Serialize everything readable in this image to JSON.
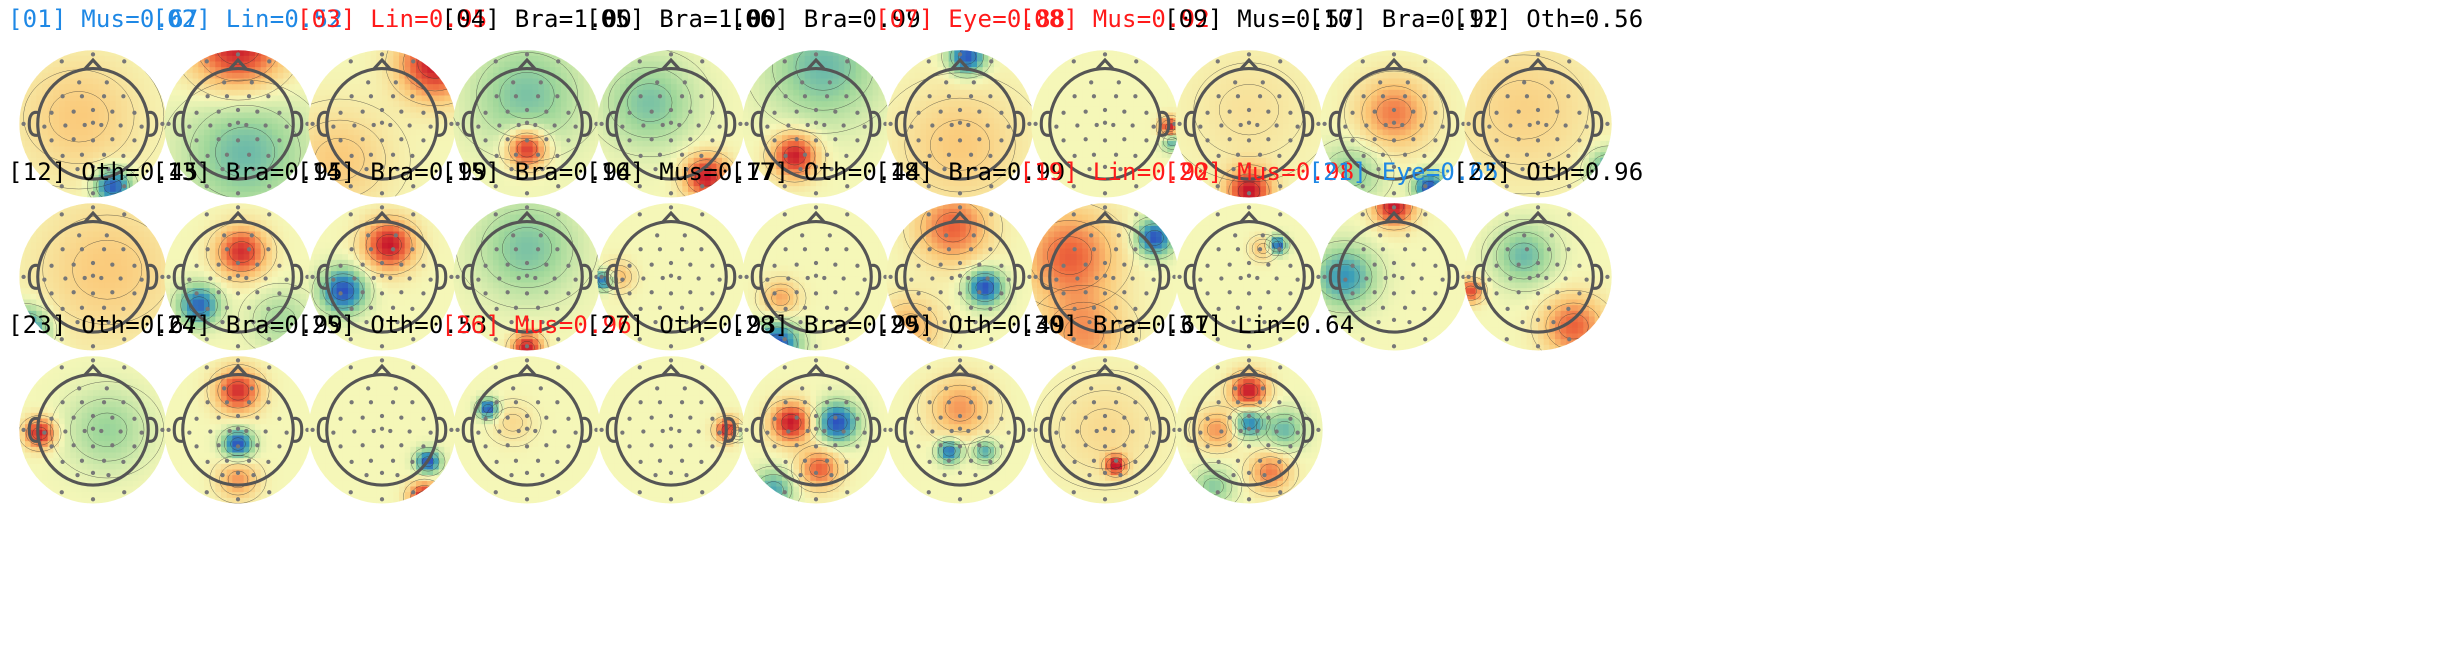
{
  "legend_colors": {
    "black": "#000000",
    "red": "#ff1a1a",
    "blue": "#1e88e5"
  },
  "colormap": [
    "#2c4fbf",
    "#3a9db8",
    "#9fd79a",
    "#f5f7b8",
    "#fbc675",
    "#ef6a3e",
    "#c7172b"
  ],
  "components": [
    {
      "label": "[01] Mus=0.67",
      "color": "blue",
      "blobs": [
        {
          "u": 0.28,
          "v": 0.88,
          "a": -1.0,
          "s": 0.18
        },
        {
          "u": -0.2,
          "v": -0.1,
          "a": 0.3,
          "s": 0.6
        }
      ]
    },
    {
      "label": "[02] Lin=0.52",
      "color": "blue",
      "blobs": [
        {
          "u": 0.0,
          "v": -1.1,
          "a": 1.0,
          "s": 0.45
        },
        {
          "u": 0.1,
          "v": 0.4,
          "a": -0.5,
          "s": 0.6
        }
      ]
    },
    {
      "label": "[03] Lin=0.95",
      "color": "red",
      "blobs": [
        {
          "u": 0.75,
          "v": -0.85,
          "a": 1.0,
          "s": 0.35
        },
        {
          "u": -0.6,
          "v": 0.5,
          "a": 0.3,
          "s": 0.5
        }
      ]
    },
    {
      "label": "[04] Bra=1.00",
      "color": "black",
      "blobs": [
        {
          "u": 0.0,
          "v": 0.35,
          "a": 1.0,
          "s": 0.2
        },
        {
          "u": 0.0,
          "v": -0.4,
          "a": -0.45,
          "s": 0.55
        }
      ]
    },
    {
      "label": "[05] Bra=1.00",
      "color": "black",
      "blobs": [
        {
          "u": 0.5,
          "v": 0.75,
          "a": 1.0,
          "s": 0.22
        },
        {
          "u": -0.3,
          "v": -0.3,
          "a": -0.45,
          "s": 0.45
        }
      ]
    },
    {
      "label": "[06] Bra=0.99",
      "color": "black",
      "blobs": [
        {
          "u": -0.3,
          "v": 0.45,
          "a": 1.0,
          "s": 0.22
        },
        {
          "u": 0.1,
          "v": -0.8,
          "a": -0.5,
          "s": 0.55
        }
      ]
    },
    {
      "label": "[07] Eye=0.88",
      "color": "red",
      "blobs": [
        {
          "u": 0.1,
          "v": -0.95,
          "a": -1.0,
          "s": 0.18
        },
        {
          "u": 0.0,
          "v": 0.3,
          "a": 0.3,
          "s": 0.6
        }
      ]
    },
    {
      "label": "[08] Mus=0.92",
      "color": "red",
      "blobs": [
        {
          "u": 0.92,
          "v": 0.05,
          "a": 1.0,
          "s": 0.1
        },
        {
          "u": 0.95,
          "v": 0.25,
          "a": -0.6,
          "s": 0.1
        }
      ]
    },
    {
      "label": "[09] Mus=0.57",
      "color": "black",
      "blobs": [
        {
          "u": 0.0,
          "v": 0.95,
          "a": 1.0,
          "s": 0.22
        },
        {
          "u": 0.0,
          "v": -0.2,
          "a": 0.15,
          "s": 0.6
        }
      ]
    },
    {
      "label": "[10] Bra=0.92",
      "color": "black",
      "blobs": [
        {
          "u": 0.0,
          "v": -0.15,
          "a": 0.6,
          "s": 0.35
        },
        {
          "u": 0.5,
          "v": 0.9,
          "a": -1.0,
          "s": 0.15
        },
        {
          "u": -0.6,
          "v": 0.7,
          "a": -0.4,
          "s": 0.3
        }
      ]
    },
    {
      "label": "[11] Oth=0.56",
      "color": "black",
      "blobs": [
        {
          "u": 1.0,
          "v": 0.65,
          "a": -0.7,
          "s": 0.2
        },
        {
          "u": -0.2,
          "v": -0.2,
          "a": 0.25,
          "s": 0.7
        }
      ]
    },
    {
      "label": "[12] Oth=0.45",
      "color": "black",
      "blobs": [
        {
          "u": -0.95,
          "v": 0.75,
          "a": -0.9,
          "s": 0.22
        },
        {
          "u": 0.2,
          "v": -0.1,
          "a": 0.3,
          "s": 0.7
        }
      ]
    },
    {
      "label": "[13] Bra=0.95",
      "color": "black",
      "blobs": [
        {
          "u": 0.05,
          "v": -0.35,
          "a": 0.9,
          "s": 0.25
        },
        {
          "u": -0.55,
          "v": 0.4,
          "a": -0.9,
          "s": 0.2
        },
        {
          "u": 0.6,
          "v": 0.6,
          "a": -0.3,
          "s": 0.3
        }
      ]
    },
    {
      "label": "[14] Bra=0.99",
      "color": "black",
      "blobs": [
        {
          "u": 0.1,
          "v": -0.45,
          "a": 1.0,
          "s": 0.25
        },
        {
          "u": -0.55,
          "v": 0.2,
          "a": -1.0,
          "s": 0.22
        }
      ]
    },
    {
      "label": "[15] Bra=0.94",
      "color": "black",
      "blobs": [
        {
          "u": 0.0,
          "v": 1.0,
          "a": 1.0,
          "s": 0.15
        },
        {
          "u": 0.0,
          "v": -0.4,
          "a": -0.45,
          "s": 0.5
        }
      ]
    },
    {
      "label": "[16] Mus=0.77",
      "color": "black",
      "blobs": [
        {
          "u": -0.95,
          "v": 0.05,
          "a": -1.0,
          "s": 0.1
        },
        {
          "u": -0.75,
          "v": 0.0,
          "a": 0.4,
          "s": 0.15
        }
      ]
    },
    {
      "label": "[17] Oth=0.44",
      "color": "black",
      "blobs": [
        {
          "u": -0.55,
          "v": 0.95,
          "a": -1.0,
          "s": 0.22
        },
        {
          "u": -0.5,
          "v": 0.3,
          "a": 0.45,
          "s": 0.18
        }
      ]
    },
    {
      "label": "[18] Bra=0.99",
      "color": "black",
      "blobs": [
        {
          "u": 0.35,
          "v": 0.15,
          "a": -1.0,
          "s": 0.18
        },
        {
          "u": -0.1,
          "v": -0.7,
          "a": 0.7,
          "s": 0.35
        },
        {
          "u": -0.7,
          "v": 0.7,
          "a": 0.4,
          "s": 0.3
        }
      ]
    },
    {
      "label": "[19] Lin=0.92",
      "color": "red",
      "blobs": [
        {
          "u": 0.7,
          "v": -0.55,
          "a": -1.0,
          "s": 0.18
        },
        {
          "u": -0.5,
          "v": -0.3,
          "a": 0.7,
          "s": 0.45
        },
        {
          "u": -0.3,
          "v": 0.8,
          "a": 0.5,
          "s": 0.4
        }
      ]
    },
    {
      "label": "[20] Mus=0.98",
      "color": "red",
      "blobs": [
        {
          "u": 0.4,
          "v": -0.45,
          "a": -1.0,
          "s": 0.09
        },
        {
          "u": 0.2,
          "v": -0.4,
          "a": 0.35,
          "s": 0.12
        }
      ]
    },
    {
      "label": "[21] Eye=0.65",
      "color": "blue",
      "blobs": [
        {
          "u": 0.0,
          "v": -1.0,
          "a": 1.0,
          "s": 0.2
        },
        {
          "u": -0.7,
          "v": 0.0,
          "a": -0.7,
          "s": 0.3
        }
      ]
    },
    {
      "label": "[22] Oth=0.96",
      "color": "black",
      "blobs": [
        {
          "u": -0.2,
          "v": -0.3,
          "a": -0.5,
          "s": 0.3
        },
        {
          "u": 0.5,
          "v": 0.7,
          "a": 0.7,
          "s": 0.3
        },
        {
          "u": -0.95,
          "v": 0.2,
          "a": 0.8,
          "s": 0.12
        }
      ]
    },
    {
      "label": "[23] Oth=0.67",
      "color": "black",
      "blobs": [
        {
          "u": -0.75,
          "v": 0.05,
          "a": 1.0,
          "s": 0.15
        },
        {
          "u": 0.2,
          "v": 0.0,
          "a": -0.35,
          "s": 0.4
        }
      ]
    },
    {
      "label": "[24] Bra=0.99",
      "color": "black",
      "blobs": [
        {
          "u": 0.0,
          "v": -0.55,
          "a": 0.9,
          "s": 0.22
        },
        {
          "u": 0.0,
          "v": 0.2,
          "a": -1.0,
          "s": 0.15
        },
        {
          "u": 0.0,
          "v": 0.7,
          "a": 0.5,
          "s": 0.2
        }
      ]
    },
    {
      "label": "[25] Oth=0.53",
      "color": "black",
      "blobs": [
        {
          "u": 0.65,
          "v": 0.45,
          "a": -1.0,
          "s": 0.12
        },
        {
          "u": 0.6,
          "v": 0.95,
          "a": 1.0,
          "s": 0.15
        }
      ]
    },
    {
      "label": "[26] Mus=0.96",
      "color": "red",
      "blobs": [
        {
          "u": -0.55,
          "v": -0.3,
          "a": -1.0,
          "s": 0.1
        },
        {
          "u": -0.2,
          "v": -0.1,
          "a": 0.2,
          "s": 0.2
        }
      ]
    },
    {
      "label": "[27] Oth=0.93",
      "color": "black",
      "blobs": [
        {
          "u": 0.8,
          "v": 0.0,
          "a": 1.0,
          "s": 0.12
        },
        {
          "u": 0.95,
          "v": 0.05,
          "a": -0.5,
          "s": 0.08
        }
      ]
    },
    {
      "label": "[28] Bra=0.95",
      "color": "black",
      "blobs": [
        {
          "u": -0.35,
          "v": -0.1,
          "a": 1.0,
          "s": 0.2
        },
        {
          "u": 0.3,
          "v": -0.1,
          "a": -1.0,
          "s": 0.2
        },
        {
          "u": 0.05,
          "v": 0.55,
          "a": 0.7,
          "s": 0.2
        },
        {
          "u": -0.6,
          "v": 0.85,
          "a": -0.6,
          "s": 0.2
        }
      ]
    },
    {
      "label": "[29] Oth=0.49",
      "color": "black",
      "blobs": [
        {
          "u": -0.15,
          "v": 0.3,
          "a": -0.9,
          "s": 0.12
        },
        {
          "u": 0.35,
          "v": 0.3,
          "a": -0.6,
          "s": 0.12
        },
        {
          "u": 0.0,
          "v": -0.3,
          "a": 0.5,
          "s": 0.3
        }
      ]
    },
    {
      "label": "[30] Bra=0.67",
      "color": "black",
      "blobs": [
        {
          "u": 0.15,
          "v": 0.5,
          "a": 1.0,
          "s": 0.1
        },
        {
          "u": 0.0,
          "v": 0.0,
          "a": 0.2,
          "s": 0.5
        }
      ]
    },
    {
      "label": "[31] Lin=0.64",
      "color": "black",
      "blobs": [
        {
          "u": 0.0,
          "v": -0.55,
          "a": 1.0,
          "s": 0.18
        },
        {
          "u": 0.0,
          "v": -0.1,
          "a": -0.8,
          "s": 0.15
        },
        {
          "u": -0.45,
          "v": 0.0,
          "a": 0.5,
          "s": 0.2
        },
        {
          "u": 0.3,
          "v": 0.6,
          "a": 0.6,
          "s": 0.2
        },
        {
          "u": 0.5,
          "v": 0.0,
          "a": -0.5,
          "s": 0.2
        },
        {
          "u": -0.5,
          "v": 0.8,
          "a": -0.4,
          "s": 0.2
        }
      ]
    }
  ]
}
